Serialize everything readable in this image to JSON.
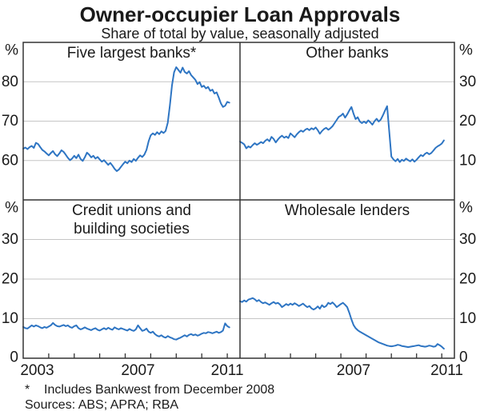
{
  "title": "Owner-occupier Loan Approvals",
  "subtitle": "Share of total by value, seasonally adjusted",
  "footnote": {
    "marker": "*",
    "text": "Includes Bankwest from December 2008"
  },
  "sources": "Sources: ABS; APRA; RBA",
  "colors": {
    "line": "#2e75c3",
    "grid": "#c6c6c6",
    "frame": "#333333",
    "text": "#1a1a1a"
  },
  "chart_data": [
    {
      "type": "line",
      "position": "top-left",
      "title_lines": [
        "Five largest banks*"
      ],
      "unit_label": "%",
      "label_side": "left",
      "ylim": [
        50,
        90
      ],
      "yticks": [
        60,
        70,
        80
      ],
      "show_zero_label": false,
      "x_range": [
        2003.0,
        2011.5
      ],
      "x_start_year": 2003.0,
      "x_step_years": 0.083333,
      "x_tick_years": [],
      "x_labels": [],
      "values": [
        63.0,
        63.3,
        62.9,
        63.4,
        63.7,
        63.2,
        64.5,
        64.2,
        63.4,
        62.7,
        62.3,
        61.8,
        61.3,
        61.9,
        62.4,
        61.6,
        61.1,
        61.8,
        62.6,
        62.2,
        61.5,
        60.7,
        60.1,
        60.5,
        61.2,
        60.6,
        61.5,
        60.4,
        59.9,
        60.8,
        62.0,
        61.5,
        60.8,
        61.2,
        60.5,
        60.9,
        60.3,
        59.7,
        60.1,
        59.5,
        58.9,
        59.4,
        58.7,
        57.9,
        57.3,
        57.7,
        58.4,
        59.1,
        59.7,
        59.3,
        60.0,
        59.6,
        60.4,
        59.9,
        60.7,
        61.3,
        60.9,
        61.5,
        62.7,
        64.9,
        66.4,
        66.9,
        66.5,
        67.2,
        66.7,
        67.4,
        67.0,
        67.5,
        69.6,
        73.9,
        79.1,
        82.4,
        83.7,
        83.0,
        82.3,
        83.6,
        82.5,
        82.1,
        82.7,
        81.7,
        81.1,
        80.5,
        79.4,
        79.9,
        78.7,
        79.0,
        78.3,
        78.7,
        77.7,
        78.0,
        77.0,
        77.3,
        76.0,
        74.5,
        73.6,
        73.9,
        74.9,
        74.7
      ]
    },
    {
      "type": "line",
      "position": "top-right",
      "title_lines": [
        "Other banks"
      ],
      "unit_label": "%",
      "label_side": "right",
      "ylim": [
        0,
        40
      ],
      "yticks": [
        10,
        20,
        30
      ],
      "show_zero_label": false,
      "x_range": [
        2003.0,
        2011.5
      ],
      "x_start_year": 2003.0,
      "x_step_years": 0.083333,
      "x_tick_years": [],
      "x_labels": [],
      "values": [
        14.8,
        14.5,
        14.1,
        13.1,
        13.6,
        13.3,
        13.9,
        14.4,
        14.0,
        14.3,
        14.7,
        14.4,
        15.0,
        15.4,
        14.9,
        16.0,
        15.5,
        14.6,
        15.3,
        15.9,
        16.3,
        15.8,
        16.1,
        15.7,
        16.9,
        16.4,
        15.9,
        16.6,
        17.2,
        17.6,
        17.3,
        17.8,
        18.1,
        17.7,
        18.2,
        17.9,
        18.4,
        17.7,
        16.8,
        17.5,
        18.0,
        18.3,
        17.8,
        18.2,
        18.7,
        19.5,
        20.3,
        21.1,
        21.4,
        21.9,
        20.9,
        21.7,
        22.7,
        23.6,
        21.9,
        20.5,
        21.0,
        19.9,
        19.5,
        19.9,
        19.5,
        20.2,
        19.7,
        19.1,
        20.0,
        20.6,
        19.9,
        20.4,
        21.5,
        22.7,
        23.8,
        17.5,
        11.0,
        10.3,
        9.8,
        10.4,
        9.6,
        10.2,
        9.9,
        10.5,
        10.1,
        9.8,
        10.3,
        9.7,
        10.2,
        10.8,
        11.4,
        11.1,
        11.7,
        12.0,
        11.6,
        11.9,
        12.5,
        13.2,
        13.6,
        13.9,
        14.3,
        15.1
      ]
    },
    {
      "type": "line",
      "position": "bottom-left",
      "title_lines": [
        "Credit unions and",
        "building societies"
      ],
      "unit_label": "%",
      "label_side": "left",
      "ylim": [
        0,
        40
      ],
      "yticks": [
        10,
        20,
        30
      ],
      "show_zero_label": true,
      "zero_label": "0",
      "x_range": [
        2003.0,
        2011.5
      ],
      "x_start_year": 2003.0,
      "x_step_years": 0.083333,
      "x_tick_years": [
        2004,
        2005,
        2006,
        2007,
        2008,
        2009,
        2010,
        2011
      ],
      "x_labels": [
        {
          "text": "2003",
          "year": 2003.55
        },
        {
          "text": "2007",
          "year": 2007.5
        },
        {
          "text": "2011",
          "year": 2011.0
        }
      ],
      "values": [
        7.9,
        7.6,
        7.5,
        7.9,
        8.3,
        8.0,
        8.3,
        8.1,
        7.8,
        7.6,
        7.9,
        7.7,
        8.0,
        8.3,
        8.9,
        8.4,
        8.1,
        8.0,
        8.2,
        8.4,
        8.1,
        8.3,
        7.9,
        7.7,
        8.1,
        8.3,
        7.6,
        7.3,
        7.5,
        7.8,
        7.5,
        7.3,
        7.1,
        7.4,
        7.6,
        7.2,
        7.0,
        7.3,
        7.6,
        7.3,
        7.7,
        7.4,
        7.2,
        7.8,
        7.5,
        7.3,
        7.6,
        7.4,
        7.2,
        7.0,
        7.4,
        7.1,
        6.9,
        7.3,
        8.3,
        7.6,
        6.9,
        7.1,
        7.5,
        6.7,
        6.4,
        6.7,
        6.1,
        5.7,
        5.5,
        5.8,
        5.4,
        5.2,
        5.6,
        5.3,
        5.1,
        4.8,
        4.7,
        5.0,
        5.2,
        5.5,
        5.8,
        5.5,
        5.9,
        6.1,
        5.8,
        6.0,
        5.7,
        5.9,
        6.2,
        6.4,
        6.3,
        6.6,
        6.5,
        6.3,
        6.5,
        6.7,
        6.4,
        6.6,
        7.0,
        8.8,
        8.1,
        7.8
      ]
    },
    {
      "type": "line",
      "position": "bottom-right",
      "title_lines": [
        "Wholesale lenders"
      ],
      "unit_label": "%",
      "label_side": "right",
      "ylim": [
        0,
        40
      ],
      "yticks": [
        10,
        20,
        30
      ],
      "show_zero_label": true,
      "zero_label": "0",
      "x_range": [
        2003.0,
        2011.5
      ],
      "x_start_year": 2003.0,
      "x_step_years": 0.083333,
      "x_tick_years": [
        2004,
        2005,
        2006,
        2007,
        2008,
        2009,
        2010,
        2011
      ],
      "x_labels": [
        {
          "text": "2007",
          "year": 2007.5
        },
        {
          "text": "2011",
          "year": 2011.2
        }
      ],
      "values": [
        14.4,
        14.2,
        14.6,
        14.3,
        14.8,
        15.0,
        15.2,
        14.9,
        14.4,
        14.7,
        14.2,
        13.9,
        14.1,
        13.8,
        13.5,
        13.9,
        14.2,
        13.8,
        14.0,
        13.6,
        12.9,
        13.3,
        13.7,
        13.4,
        13.8,
        13.5,
        13.9,
        13.6,
        13.2,
        13.5,
        13.8,
        13.3,
        12.9,
        13.2,
        12.6,
        12.3,
        12.6,
        13.1,
        12.5,
        13.4,
        12.9,
        13.2,
        14.0,
        13.7,
        14.1,
        13.6,
        12.9,
        13.3,
        13.7,
        14.0,
        13.5,
        12.9,
        11.5,
        9.8,
        8.4,
        7.6,
        7.1,
        6.7,
        6.4,
        6.1,
        5.8,
        5.5,
        5.2,
        4.9,
        4.6,
        4.3,
        4.0,
        3.8,
        3.6,
        3.4,
        3.2,
        3.1,
        3.0,
        3.1,
        3.2,
        3.4,
        3.3,
        3.1,
        3.0,
        2.9,
        2.8,
        2.9,
        3.0,
        3.1,
        3.2,
        3.3,
        3.1,
        3.0,
        2.9,
        3.0,
        3.2,
        3.1,
        2.9,
        3.0,
        3.6,
        3.3,
        2.9,
        2.4
      ]
    }
  ]
}
